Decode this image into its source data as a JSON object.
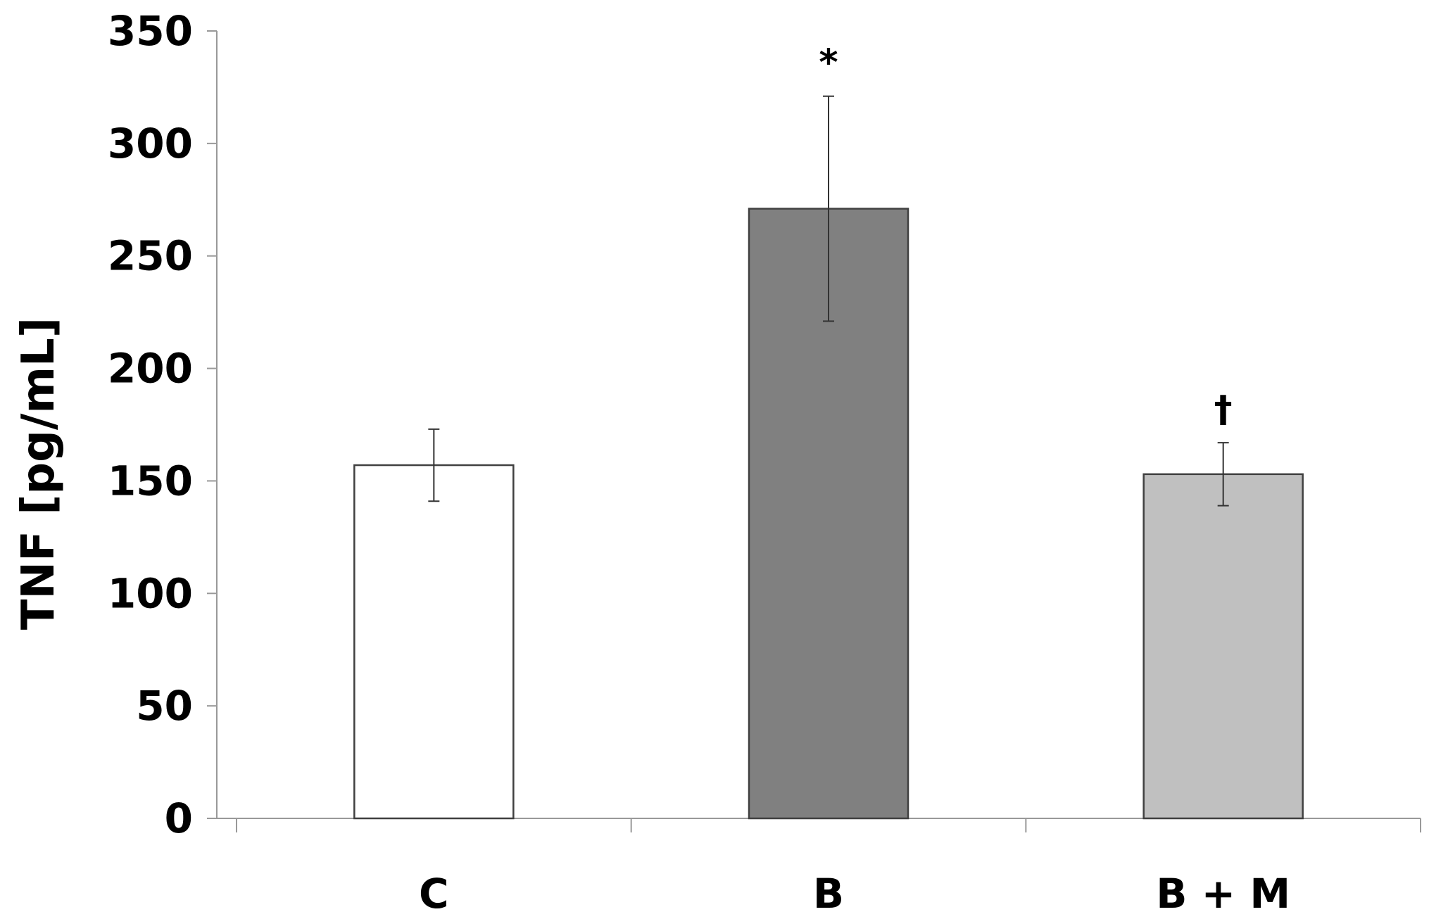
{
  "chart_data": {
    "type": "bar",
    "categories": [
      "C",
      "B",
      "B + M"
    ],
    "values": [
      157,
      271,
      153
    ],
    "errors": [
      16,
      50,
      14
    ],
    "annotations": [
      "",
      "*",
      "†"
    ],
    "colors": [
      "#ffffff",
      "#808080",
      "#c0c0c0"
    ],
    "ylabel": "TNF [pg/mL]",
    "xlabel": "",
    "ylim": [
      0,
      350
    ],
    "yticks": [
      "0",
      "50",
      "100",
      "150",
      "200",
      "250",
      "300",
      "350"
    ],
    "grid": false
  }
}
